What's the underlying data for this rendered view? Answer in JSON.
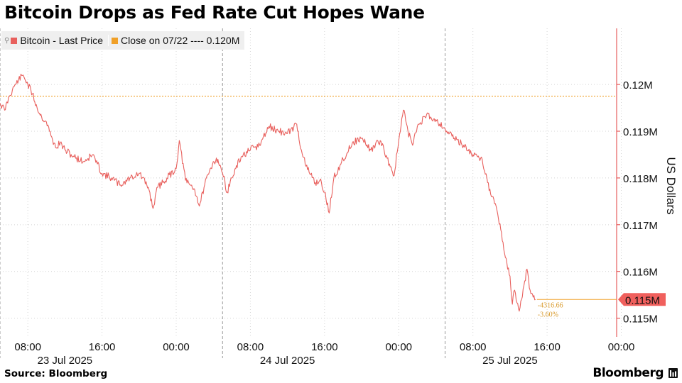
{
  "title": "Bitcoin Drops as Fed Rate Cut Hopes Wane",
  "legend": {
    "series_label": "Bitcoin - Last Price",
    "close_label": "Close on 07/22 ---- 0.120M"
  },
  "annotation": {
    "change": "-4316.66",
    "change_pct": "-3.60%"
  },
  "source": "Source: Bloomberg",
  "brand": "Bloomberg",
  "icons": {
    "brand_icon": "bloomberg-terminal-icon",
    "pin_icon": "pin-icon"
  },
  "colors": {
    "series": "#e8605d",
    "close_line": "#f0a028",
    "last_badge": "#f0605d",
    "annotation": "#d99a2b"
  },
  "chart_data": {
    "type": "line",
    "title": "Bitcoin Drops as Fed Rate Cut Hopes Wane",
    "ylabel": "US Dollars",
    "ylim": [
      114.6,
      121.2
    ],
    "yunit": "thousand USD",
    "y_ticks": [
      {
        "value": 120.0,
        "label": "0.12M"
      },
      {
        "value": 119.0,
        "label": "0.119M"
      },
      {
        "value": 118.0,
        "label": "0.118M"
      },
      {
        "value": 117.0,
        "label": "0.117M"
      },
      {
        "value": 116.0,
        "label": "0.116M"
      },
      {
        "value": 115.0,
        "label": "0.115M"
      }
    ],
    "x_range": [
      "2025-07-23 05:00",
      "2025-07-25 23:30"
    ],
    "x_ticks": [
      {
        "t": "2025-07-23 08:00",
        "label": "08:00"
      },
      {
        "t": "2025-07-23 16:00",
        "label": "16:00"
      },
      {
        "t": "2025-07-24 00:00",
        "label": "00:00"
      },
      {
        "t": "2025-07-24 08:00",
        "label": "08:00"
      },
      {
        "t": "2025-07-24 16:00",
        "label": "16:00"
      },
      {
        "t": "2025-07-25 00:00",
        "label": "00:00"
      },
      {
        "t": "2025-07-25 08:00",
        "label": "08:00"
      },
      {
        "t": "2025-07-25 16:00",
        "label": "16:00"
      },
      {
        "t": "2025-07-26 00:00",
        "label": "00:00"
      }
    ],
    "date_labels": [
      {
        "t": "2025-07-23 12:00",
        "label": "23 Jul 2025"
      },
      {
        "t": "2025-07-24 12:00",
        "label": "24 Jul 2025"
      },
      {
        "t": "2025-07-25 12:00",
        "label": "25 Jul 2025"
      }
    ],
    "day_boundaries": [
      "2025-07-23 05:00",
      "2025-07-24 05:00",
      "2025-07-25 05:00"
    ],
    "close_line": {
      "name": "Close on 07/22",
      "value": 119.75
    },
    "last_value": {
      "value": 115.4,
      "label": "0.115M"
    },
    "grid": true,
    "legend_position": "top-left",
    "series": [
      {
        "name": "Bitcoin - Last Price",
        "points": [
          [
            "2025-07-23 05:00",
            119.6
          ],
          [
            "2025-07-23 05:30",
            119.45
          ],
          [
            "2025-07-23 06:00",
            119.75
          ],
          [
            "2025-07-23 06:30",
            119.95
          ],
          [
            "2025-07-23 07:00",
            120.1
          ],
          [
            "2025-07-23 07:30",
            120.2
          ],
          [
            "2025-07-23 08:00",
            120.0
          ],
          [
            "2025-07-23 08:30",
            119.8
          ],
          [
            "2025-07-23 09:00",
            119.5
          ],
          [
            "2025-07-23 09:30",
            119.3
          ],
          [
            "2025-07-23 10:00",
            119.2
          ],
          [
            "2025-07-23 10:30",
            118.9
          ],
          [
            "2025-07-23 11:00",
            118.65
          ],
          [
            "2025-07-23 11:30",
            118.75
          ],
          [
            "2025-07-23 12:00",
            118.6
          ],
          [
            "2025-07-23 13:00",
            118.45
          ],
          [
            "2025-07-23 14:00",
            118.35
          ],
          [
            "2025-07-23 15:00",
            118.5
          ],
          [
            "2025-07-23 15:30",
            118.3
          ],
          [
            "2025-07-23 16:00",
            118.1
          ],
          [
            "2025-07-23 17:00",
            118.0
          ],
          [
            "2025-07-23 18:00",
            117.85
          ],
          [
            "2025-07-23 19:00",
            118.0
          ],
          [
            "2025-07-23 20:00",
            118.1
          ],
          [
            "2025-07-23 21:00",
            117.8
          ],
          [
            "2025-07-23 21:30",
            117.35
          ],
          [
            "2025-07-23 22:00",
            117.8
          ],
          [
            "2025-07-23 23:00",
            118.0
          ],
          [
            "2025-07-24 00:00",
            118.2
          ],
          [
            "2025-07-24 00:20",
            118.8
          ],
          [
            "2025-07-24 01:00",
            117.95
          ],
          [
            "2025-07-24 02:00",
            117.75
          ],
          [
            "2025-07-24 02:30",
            117.4
          ],
          [
            "2025-07-24 03:00",
            117.8
          ],
          [
            "2025-07-24 04:00",
            118.35
          ],
          [
            "2025-07-24 04:30",
            118.4
          ],
          [
            "2025-07-24 05:00",
            118.1
          ],
          [
            "2025-07-24 05:30",
            117.7
          ],
          [
            "2025-07-24 06:00",
            118.0
          ],
          [
            "2025-07-24 07:00",
            118.45
          ],
          [
            "2025-07-24 08:00",
            118.6
          ],
          [
            "2025-07-24 09:00",
            118.7
          ],
          [
            "2025-07-24 10:00",
            119.1
          ],
          [
            "2025-07-24 11:00",
            119.0
          ],
          [
            "2025-07-24 12:00",
            118.95
          ],
          [
            "2025-07-24 13:00",
            119.15
          ],
          [
            "2025-07-24 13:30",
            118.6
          ],
          [
            "2025-07-24 14:00",
            118.25
          ],
          [
            "2025-07-24 15:00",
            117.9
          ],
          [
            "2025-07-24 15:30",
            117.95
          ],
          [
            "2025-07-24 16:00",
            117.7
          ],
          [
            "2025-07-24 16:30",
            117.25
          ],
          [
            "2025-07-24 17:00",
            118.0
          ],
          [
            "2025-07-24 18:00",
            118.4
          ],
          [
            "2025-07-24 19:00",
            118.75
          ],
          [
            "2025-07-24 20:00",
            118.85
          ],
          [
            "2025-07-24 21:00",
            118.6
          ],
          [
            "2025-07-24 22:00",
            118.8
          ],
          [
            "2025-07-24 23:00",
            118.3
          ],
          [
            "2025-07-24 23:30",
            118.05
          ],
          [
            "2025-07-25 00:00",
            118.8
          ],
          [
            "2025-07-25 00:30",
            119.45
          ],
          [
            "2025-07-25 01:00",
            119.0
          ],
          [
            "2025-07-25 01:30",
            118.7
          ],
          [
            "2025-07-25 02:00",
            119.1
          ],
          [
            "2025-07-25 03:00",
            119.35
          ],
          [
            "2025-07-25 04:00",
            119.25
          ],
          [
            "2025-07-25 05:00",
            119.05
          ],
          [
            "2025-07-25 06:00",
            118.85
          ],
          [
            "2025-07-25 07:00",
            118.7
          ],
          [
            "2025-07-25 08:00",
            118.5
          ],
          [
            "2025-07-25 09:00",
            118.4
          ],
          [
            "2025-07-25 09:30",
            118.0
          ],
          [
            "2025-07-25 10:00",
            117.6
          ],
          [
            "2025-07-25 10:30",
            117.4
          ],
          [
            "2025-07-25 11:00",
            116.9
          ],
          [
            "2025-07-25 11:30",
            116.3
          ],
          [
            "2025-07-25 12:00",
            115.9
          ],
          [
            "2025-07-25 12:15",
            115.3
          ],
          [
            "2025-07-25 12:30",
            115.6
          ],
          [
            "2025-07-25 13:00",
            115.15
          ],
          [
            "2025-07-25 13:30",
            115.7
          ],
          [
            "2025-07-25 13:50",
            116.05
          ],
          [
            "2025-07-25 14:10",
            115.6
          ],
          [
            "2025-07-25 14:30",
            115.45
          ],
          [
            "2025-07-25 14:45",
            115.4
          ]
        ]
      }
    ]
  }
}
